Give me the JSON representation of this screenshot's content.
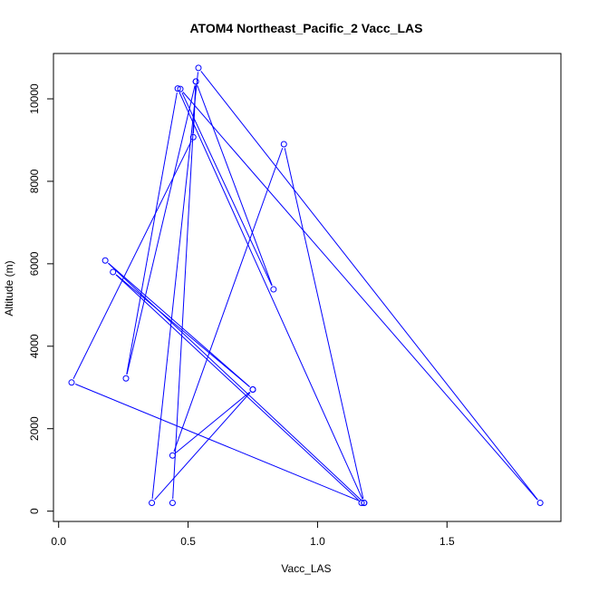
{
  "chart_data": {
    "type": "scatter",
    "title": "ATOM4 Northeast_Pacific_2 Vacc_LAS",
    "xlabel": "Vacc_LAS",
    "ylabel": "Altitude (m)",
    "xlim": [
      -0.02,
      1.94
    ],
    "ylim": [
      -250,
      11100
    ],
    "x_ticks": [
      0,
      0.5,
      1,
      1.5
    ],
    "x_tick_labels": [
      "0.0",
      "0.5",
      "1.0",
      "1.5"
    ],
    "y_ticks": [
      0,
      2000,
      4000,
      6000,
      8000,
      10000
    ],
    "y_tick_labels": [
      "0",
      "2000",
      "4000",
      "6000",
      "8000",
      "10000"
    ],
    "grid": false,
    "legend": "none",
    "point_marker": "open-circle",
    "series": [
      {
        "color": "#0000ff",
        "connected": true,
        "x": [
          1.17,
          0.21,
          0.75,
          0.18,
          1.18,
          0.46,
          0.26,
          0.53,
          0.83,
          0.47,
          1.86,
          0.54,
          0.36,
          0.75,
          0.44,
          0.87,
          1.18,
          0.05,
          0.52,
          0.53,
          0.44
        ],
        "y": [
          200,
          5800,
          2950,
          6080,
          200,
          10250,
          3220,
          10420,
          5380,
          10240,
          200,
          10750,
          200,
          2950,
          1350,
          8900,
          200,
          3120,
          9070,
          10420,
          200
        ]
      }
    ]
  }
}
